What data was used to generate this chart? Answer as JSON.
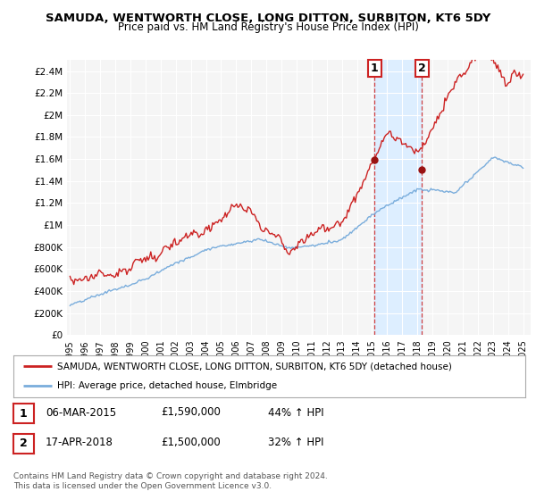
{
  "title": "SAMUDA, WENTWORTH CLOSE, LONG DITTON, SURBITON, KT6 5DY",
  "subtitle": "Price paid vs. HM Land Registry's House Price Index (HPI)",
  "ylabel_ticks": [
    "£0",
    "£200K",
    "£400K",
    "£600K",
    "£800K",
    "£1M",
    "£1.2M",
    "£1.4M",
    "£1.6M",
    "£1.8M",
    "£2M",
    "£2.2M",
    "£2.4M"
  ],
  "ytick_values": [
    0,
    200000,
    400000,
    600000,
    800000,
    1000000,
    1200000,
    1400000,
    1600000,
    1800000,
    2000000,
    2200000,
    2400000
  ],
  "ylim": [
    0,
    2500000
  ],
  "xlim": [
    1994.8,
    2025.5
  ],
  "xtick_years": [
    1995,
    1996,
    1997,
    1998,
    1999,
    2000,
    2001,
    2002,
    2003,
    2004,
    2005,
    2006,
    2007,
    2008,
    2009,
    2010,
    2011,
    2012,
    2013,
    2014,
    2015,
    2016,
    2017,
    2018,
    2019,
    2020,
    2021,
    2022,
    2023,
    2024,
    2025
  ],
  "sale1_x": 2015.17,
  "sale1_y": 1590000,
  "sale1_label": "1",
  "sale2_x": 2018.29,
  "sale2_y": 1500000,
  "sale2_label": "2",
  "hpi_line_color": "#7aaddc",
  "price_line_color": "#cc2222",
  "shaded_color": "#ddeeff",
  "vline_color": "#cc2222",
  "legend_price_label": "SAMUDA, WENTWORTH CLOSE, LONG DITTON, SURBITON, KT6 5DY (detached house)",
  "legend_hpi_label": "HPI: Average price, detached house, Elmbridge",
  "table_row1": [
    "1",
    "06-MAR-2015",
    "£1,590,000",
    "44% ↑ HPI"
  ],
  "table_row2": [
    "2",
    "17-APR-2018",
    "£1,500,000",
    "32% ↑ HPI"
  ],
  "footnote": "Contains HM Land Registry data © Crown copyright and database right 2024.\nThis data is licensed under the Open Government Licence v3.0.",
  "background_color": "#ffffff",
  "plot_bg_color": "#f5f5f5"
}
